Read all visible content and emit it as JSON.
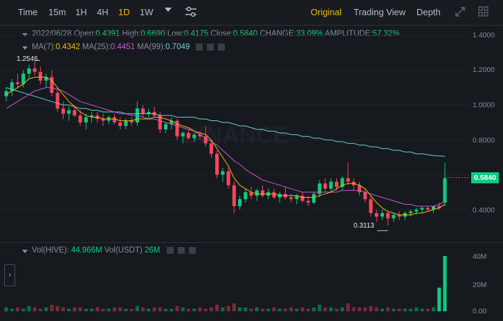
{
  "toolbar": {
    "time_label": "Time",
    "intervals": [
      "15m",
      "1H",
      "4H",
      "1D",
      "1W"
    ],
    "active_interval": "1D",
    "view_original": "Original",
    "view_trading": "Trading View",
    "view_depth": "Depth"
  },
  "ohlc": {
    "date": "2022/06/28",
    "open_label": "Open:",
    "open": "0.4391",
    "high_label": "High:",
    "high": "0.6690",
    "low_label": "Low:",
    "low": "0.4175",
    "close_label": "Close:",
    "close": "0.5840",
    "change_label": "CHANGE:",
    "change": "33.09%",
    "amplitude_label": "AMPLITUDE:",
    "amplitude": "57.32%"
  },
  "ma": {
    "ma7_label": "MA(7):",
    "ma7": "0.4342",
    "ma25_label": "MA(25):",
    "ma25": "0.4451",
    "ma99_label": "MA(99):",
    "ma99": "0.7049"
  },
  "volume": {
    "hive_label": "Vol(HIVE):",
    "hive": "44.966M",
    "usdt_label": "Vol(USDT)",
    "usdt": "26M"
  },
  "price_axis": [
    "1.4000",
    "1.2000",
    "1.0000",
    "0.8000",
    "0.4000"
  ],
  "current_price": "0.5840",
  "volume_axis": [
    "40M",
    "20M",
    "0.00"
  ],
  "annotations": {
    "high_mark": "1.2546",
    "low_mark": "0.3113"
  },
  "watermark": "BINANCE",
  "colors": {
    "up": "#0ecb81",
    "down": "#f6465d",
    "ma7": "#f0b90b",
    "ma25": "#c75bd5",
    "ma99": "#6fd0d8",
    "accent": "#f0b90b"
  },
  "chart_data": {
    "type": "candlestick",
    "ylim": [
      0.3,
      1.42
    ],
    "candles": [
      [
        1.05,
        1.1,
        1.02,
        1.08
      ],
      [
        1.08,
        1.15,
        1.05,
        1.13
      ],
      [
        1.13,
        1.18,
        1.1,
        1.12
      ],
      [
        1.12,
        1.2,
        1.1,
        1.18
      ],
      [
        1.18,
        1.23,
        1.15,
        1.21
      ],
      [
        1.21,
        1.25,
        1.17,
        1.19
      ],
      [
        1.19,
        1.22,
        1.12,
        1.14
      ],
      [
        1.14,
        1.18,
        1.1,
        1.16
      ],
      [
        1.16,
        1.2,
        1.05,
        1.07
      ],
      [
        1.07,
        1.1,
        0.96,
        0.98
      ],
      [
        0.98,
        1.02,
        0.92,
        0.95
      ],
      [
        0.95,
        0.99,
        0.91,
        0.97
      ],
      [
        0.97,
        1.0,
        0.93,
        0.94
      ],
      [
        0.94,
        0.97,
        0.88,
        0.9
      ],
      [
        0.9,
        0.95,
        0.86,
        0.93
      ],
      [
        0.93,
        0.96,
        0.9,
        0.94
      ],
      [
        0.94,
        0.96,
        0.9,
        0.92
      ],
      [
        0.92,
        0.95,
        0.88,
        0.91
      ],
      [
        0.91,
        0.94,
        0.89,
        0.93
      ],
      [
        0.93,
        0.95,
        0.89,
        0.9
      ],
      [
        0.9,
        0.93,
        0.86,
        0.88
      ],
      [
        0.88,
        0.92,
        0.86,
        0.91
      ],
      [
        0.91,
        0.93,
        0.88,
        0.9
      ],
      [
        0.9,
        1.02,
        0.88,
        0.98
      ],
      [
        0.98,
        1.0,
        0.93,
        0.95
      ],
      [
        0.95,
        0.98,
        0.92,
        0.96
      ],
      [
        0.96,
        0.99,
        0.93,
        0.94
      ],
      [
        0.94,
        0.96,
        0.84,
        0.86
      ],
      [
        0.86,
        0.9,
        0.84,
        0.89
      ],
      [
        0.89,
        0.93,
        0.86,
        0.91
      ],
      [
        0.91,
        0.92,
        0.8,
        0.82
      ],
      [
        0.82,
        0.85,
        0.78,
        0.84
      ],
      [
        0.84,
        0.86,
        0.8,
        0.81
      ],
      [
        0.81,
        0.84,
        0.79,
        0.83
      ],
      [
        0.83,
        0.85,
        0.8,
        0.82
      ],
      [
        0.82,
        0.88,
        0.76,
        0.78
      ],
      [
        0.78,
        0.8,
        0.7,
        0.72
      ],
      [
        0.72,
        0.74,
        0.58,
        0.6
      ],
      [
        0.6,
        0.64,
        0.56,
        0.62
      ],
      [
        0.62,
        0.64,
        0.52,
        0.54
      ],
      [
        0.54,
        0.56,
        0.38,
        0.42
      ],
      [
        0.42,
        0.48,
        0.4,
        0.46
      ],
      [
        0.46,
        0.52,
        0.44,
        0.5
      ],
      [
        0.5,
        0.53,
        0.46,
        0.48
      ],
      [
        0.48,
        0.52,
        0.45,
        0.51
      ],
      [
        0.51,
        0.54,
        0.47,
        0.48
      ],
      [
        0.48,
        0.52,
        0.46,
        0.5
      ],
      [
        0.5,
        0.52,
        0.46,
        0.47
      ],
      [
        0.47,
        0.5,
        0.44,
        0.49
      ],
      [
        0.49,
        0.53,
        0.46,
        0.47
      ],
      [
        0.47,
        0.49,
        0.44,
        0.46
      ],
      [
        0.46,
        0.49,
        0.43,
        0.48
      ],
      [
        0.48,
        0.5,
        0.44,
        0.45
      ],
      [
        0.45,
        0.48,
        0.42,
        0.44
      ],
      [
        0.44,
        0.5,
        0.43,
        0.49
      ],
      [
        0.49,
        0.57,
        0.47,
        0.55
      ],
      [
        0.55,
        0.58,
        0.5,
        0.52
      ],
      [
        0.52,
        0.58,
        0.5,
        0.56
      ],
      [
        0.56,
        0.58,
        0.51,
        0.53
      ],
      [
        0.53,
        0.59,
        0.51,
        0.58
      ],
      [
        0.58,
        0.67,
        0.54,
        0.56
      ],
      [
        0.56,
        0.58,
        0.51,
        0.54
      ],
      [
        0.54,
        0.56,
        0.48,
        0.5
      ],
      [
        0.5,
        0.52,
        0.44,
        0.46
      ],
      [
        0.46,
        0.48,
        0.36,
        0.38
      ],
      [
        0.38,
        0.4,
        0.33,
        0.36
      ],
      [
        0.36,
        0.4,
        0.34,
        0.38
      ],
      [
        0.38,
        0.39,
        0.31,
        0.35
      ],
      [
        0.35,
        0.38,
        0.33,
        0.37
      ],
      [
        0.37,
        0.39,
        0.34,
        0.36
      ],
      [
        0.36,
        0.39,
        0.34,
        0.38
      ],
      [
        0.38,
        0.4,
        0.36,
        0.39
      ],
      [
        0.39,
        0.41,
        0.37,
        0.4
      ],
      [
        0.4,
        0.42,
        0.38,
        0.41
      ],
      [
        0.41,
        0.42,
        0.39,
        0.4
      ],
      [
        0.4,
        0.42,
        0.38,
        0.42
      ],
      [
        0.42,
        0.44,
        0.4,
        0.41
      ],
      [
        0.44,
        0.67,
        0.42,
        0.58
      ]
    ],
    "volumes": [
      3,
      2,
      3,
      2,
      4,
      3,
      2,
      3,
      5,
      4,
      3,
      2,
      3,
      3,
      2,
      2,
      3,
      2,
      2,
      3,
      3,
      2,
      2,
      4,
      3,
      2,
      3,
      3,
      2,
      2,
      4,
      3,
      2,
      2,
      3,
      2,
      3,
      5,
      3,
      4,
      6,
      3,
      3,
      2,
      3,
      2,
      2,
      3,
      2,
      2,
      3,
      2,
      3,
      2,
      3,
      5,
      3,
      3,
      2,
      3,
      6,
      3,
      3,
      3,
      4,
      3,
      2,
      3,
      2,
      2,
      2,
      2,
      3,
      2,
      2,
      3,
      18,
      45
    ],
    "ma7": [
      1.06,
      1.08,
      1.1,
      1.12,
      1.15,
      1.16,
      1.16,
      1.16,
      1.14,
      1.1,
      1.06,
      1.02,
      0.99,
      0.96,
      0.94,
      0.93,
      0.93,
      0.92,
      0.92,
      0.92,
      0.91,
      0.91,
      0.91,
      0.92,
      0.92,
      0.92,
      0.93,
      0.93,
      0.92,
      0.91,
      0.89,
      0.88,
      0.87,
      0.85,
      0.84,
      0.83,
      0.8,
      0.75,
      0.7,
      0.65,
      0.58,
      0.54,
      0.52,
      0.5,
      0.49,
      0.49,
      0.49,
      0.49,
      0.48,
      0.48,
      0.48,
      0.48,
      0.47,
      0.47,
      0.47,
      0.48,
      0.49,
      0.5,
      0.52,
      0.54,
      0.55,
      0.55,
      0.54,
      0.52,
      0.48,
      0.44,
      0.41,
      0.39,
      0.38,
      0.37,
      0.37,
      0.37,
      0.38,
      0.38,
      0.39,
      0.4,
      0.41,
      0.43
    ],
    "ma25": [
      0.98,
      1.0,
      1.02,
      1.04,
      1.06,
      1.08,
      1.09,
      1.1,
      1.1,
      1.09,
      1.08,
      1.06,
      1.04,
      1.02,
      1.01,
      1.0,
      0.99,
      0.98,
      0.97,
      0.96,
      0.95,
      0.95,
      0.94,
      0.94,
      0.93,
      0.92,
      0.92,
      0.91,
      0.9,
      0.89,
      0.88,
      0.87,
      0.86,
      0.85,
      0.83,
      0.81,
      0.79,
      0.77,
      0.74,
      0.71,
      0.68,
      0.66,
      0.63,
      0.61,
      0.59,
      0.57,
      0.56,
      0.55,
      0.54,
      0.53,
      0.52,
      0.51,
      0.5,
      0.5,
      0.5,
      0.5,
      0.5,
      0.5,
      0.5,
      0.51,
      0.51,
      0.51,
      0.51,
      0.5,
      0.49,
      0.48,
      0.47,
      0.46,
      0.45,
      0.44,
      0.43,
      0.43,
      0.42,
      0.42,
      0.42,
      0.42,
      0.43,
      0.445
    ],
    "ma99": [
      1.1,
      1.09,
      1.08,
      1.07,
      1.06,
      1.05,
      1.04,
      1.03,
      1.02,
      1.01,
      1.0,
      1.0,
      0.99,
      0.98,
      0.98,
      0.97,
      0.97,
      0.96,
      0.96,
      0.96,
      0.96,
      0.95,
      0.95,
      0.95,
      0.95,
      0.95,
      0.95,
      0.94,
      0.94,
      0.94,
      0.93,
      0.93,
      0.93,
      0.93,
      0.92,
      0.92,
      0.91,
      0.91,
      0.9,
      0.9,
      0.89,
      0.88,
      0.88,
      0.87,
      0.86,
      0.86,
      0.85,
      0.85,
      0.84,
      0.84,
      0.83,
      0.83,
      0.82,
      0.82,
      0.81,
      0.81,
      0.8,
      0.8,
      0.79,
      0.79,
      0.78,
      0.78,
      0.77,
      0.77,
      0.76,
      0.76,
      0.75,
      0.75,
      0.74,
      0.74,
      0.73,
      0.73,
      0.72,
      0.72,
      0.715,
      0.71,
      0.708,
      0.705
    ]
  }
}
